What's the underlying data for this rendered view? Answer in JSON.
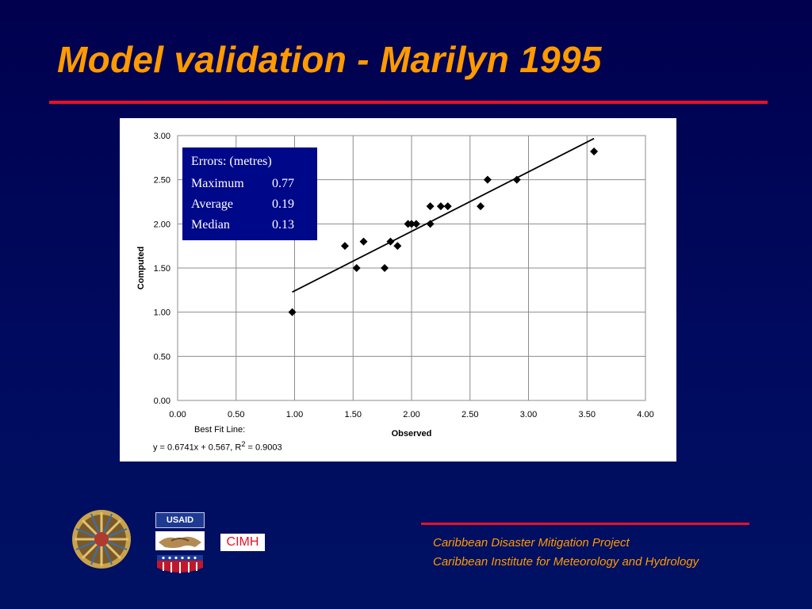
{
  "slide": {
    "title": "Model validation - Marilyn 1995"
  },
  "stats_box": {
    "heading": "Errors: (metres)",
    "rows": [
      {
        "label": "Maximum",
        "value": "0.77"
      },
      {
        "label": "Average",
        "value": "0.19"
      },
      {
        "label": "Median",
        "value": "0.13"
      }
    ]
  },
  "fit_caption": {
    "label": "Best Fit Line:",
    "equation": "y = 0.6741x + 0.567, R",
    "sup": "2",
    "equation_tail": " = 0.9003"
  },
  "chart_data": {
    "type": "scatter",
    "xlabel": "Observed",
    "ylabel": "Computed",
    "xlim": [
      0,
      4
    ],
    "ylim": [
      0,
      3
    ],
    "x_ticks": [
      "0.00",
      "0.50",
      "1.00",
      "1.50",
      "2.00",
      "2.50",
      "3.00",
      "3.50",
      "4.00"
    ],
    "y_ticks": [
      "0.00",
      "0.50",
      "1.00",
      "1.50",
      "2.00",
      "2.50",
      "3.00"
    ],
    "grid": true,
    "marker_color": "#000000",
    "points": [
      {
        "x": 0.98,
        "y": 1.0
      },
      {
        "x": 1.43,
        "y": 1.75
      },
      {
        "x": 1.53,
        "y": 1.5
      },
      {
        "x": 1.59,
        "y": 1.8
      },
      {
        "x": 1.77,
        "y": 1.5
      },
      {
        "x": 1.82,
        "y": 1.8
      },
      {
        "x": 1.88,
        "y": 1.75
      },
      {
        "x": 1.97,
        "y": 2.0
      },
      {
        "x": 2.0,
        "y": 2.0
      },
      {
        "x": 2.04,
        "y": 2.0
      },
      {
        "x": 2.16,
        "y": 2.2
      },
      {
        "x": 2.16,
        "y": 2.0
      },
      {
        "x": 2.25,
        "y": 2.2
      },
      {
        "x": 2.31,
        "y": 2.2
      },
      {
        "x": 2.59,
        "y": 2.2
      },
      {
        "x": 2.65,
        "y": 2.5
      },
      {
        "x": 2.9,
        "y": 2.5
      },
      {
        "x": 3.56,
        "y": 2.82
      }
    ],
    "fit_line": {
      "slope": 0.6741,
      "intercept": 0.567,
      "x_range": [
        0.98,
        3.56
      ]
    }
  },
  "footer": {
    "line1": "Caribbean Disaster Mitigation Project",
    "line2": "Caribbean Institute for Meteorology and Hydrology",
    "usaid_logo_text": "USAID",
    "cimh_logo_text": "CIMH"
  }
}
